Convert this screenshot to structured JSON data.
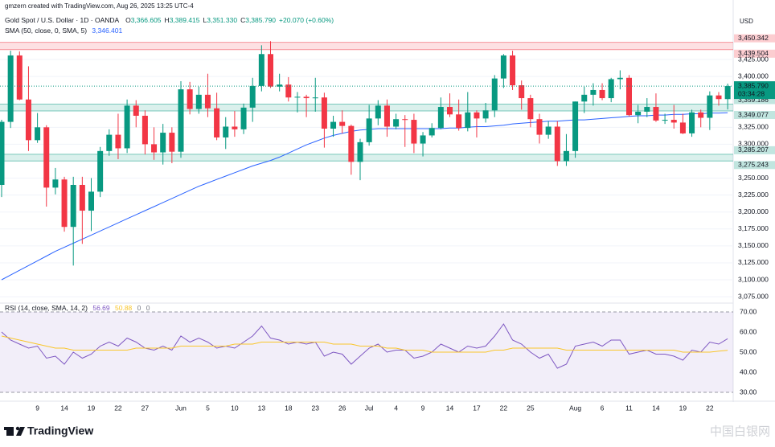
{
  "credit": "gmzern created with TradingView.com, Aug 26, 2025 13:25 UTC-4",
  "brand": "TradingView",
  "watermark": "中国白银网",
  "chart_data": [
    {
      "type": "candlestick",
      "title": "Gold Spot / U.S. Dollar · 1D · OANDA",
      "currency": "USD",
      "ohlc_legend": [
        {
          "label": "O",
          "value": "3,366.605"
        },
        {
          "label": "H",
          "value": "3,389.415"
        },
        {
          "label": "L",
          "value": "3,351.330"
        },
        {
          "label": "C",
          "value": "3,385.790"
        }
      ],
      "change": "+20.070 (+0.60%)",
      "up_color": "#089981",
      "down_color": "#f23645",
      "categories": [
        null,
        null,
        null,
        null,
        "9",
        null,
        null,
        "14",
        null,
        null,
        "19",
        null,
        null,
        "22",
        null,
        null,
        "27",
        null,
        null,
        null,
        "Jun",
        null,
        null,
        "5",
        null,
        null,
        "10",
        null,
        null,
        "13",
        null,
        null,
        "18",
        null,
        null,
        "23",
        null,
        null,
        "26",
        null,
        null,
        "Jul",
        null,
        null,
        "4",
        null,
        null,
        "9",
        null,
        null,
        "14",
        null,
        null,
        "17",
        null,
        null,
        "22",
        null,
        null,
        "25",
        null,
        null,
        null,
        null,
        "Aug",
        null,
        null,
        "6",
        null,
        null,
        "11",
        null,
        null,
        "14",
        null,
        null,
        "19",
        null,
        null,
        "22",
        null,
        null
      ],
      "open": [
        3240,
        3333,
        3431,
        3366,
        3306,
        3325,
        3236,
        3248,
        3178,
        3240,
        3202,
        3230,
        3290,
        3314,
        3294,
        3357,
        3342,
        3300,
        3288,
        3317,
        3289,
        3381,
        3352,
        3373,
        3353,
        3310,
        3326,
        3322,
        3354,
        3386,
        3433,
        3385,
        3388,
        3369,
        3370,
        3368,
        3369,
        3323,
        3333,
        3327,
        3274,
        3303,
        3338,
        3357,
        3326,
        3337,
        3336,
        3301,
        3313,
        3324,
        3355,
        3344,
        3324,
        3347,
        3338,
        3350,
        3397,
        3431,
        3387,
        3368,
        3337,
        3314,
        3326,
        3275,
        3290,
        3363,
        3373,
        3380,
        3368,
        3396,
        3398,
        3343,
        3348,
        3355,
        3335,
        3336,
        3332,
        3316,
        3347,
        3339,
        3372,
        3366.605
      ],
      "high": [
        3336,
        3438,
        3437,
        3415,
        3346,
        3328,
        3265,
        3252,
        3252,
        3252,
        3250,
        3296,
        3322,
        3345,
        3366,
        3365,
        3350,
        3325,
        3330,
        3325,
        3393,
        3392,
        3385,
        3404,
        3376,
        3340,
        3349,
        3360,
        3398,
        3446,
        3452,
        3404,
        3399,
        3377,
        3373,
        3398,
        3376,
        3342,
        3350,
        3329,
        3308,
        3358,
        3365,
        3366,
        3345,
        3343,
        3345,
        3318,
        3331,
        3369,
        3375,
        3366,
        3377,
        3350,
        3361,
        3402,
        3433,
        3438,
        3394,
        3373,
        3345,
        3334,
        3334,
        3315,
        3363,
        3385,
        3390,
        3390,
        3398,
        3409,
        3402,
        3358,
        3368,
        3375,
        3345,
        3358,
        3345,
        3351,
        3351,
        3378,
        3377,
        3389.415
      ],
      "low": [
        3222,
        3324,
        3365,
        3290,
        3302,
        3208,
        3226,
        3171,
        3121,
        3153,
        3172,
        3222,
        3283,
        3278,
        3287,
        3325,
        3285,
        3277,
        3270,
        3272,
        3280,
        3344,
        3345,
        3340,
        3306,
        3293,
        3311,
        3315,
        3333,
        3378,
        3383,
        3378,
        3363,
        3347,
        3340,
        3348,
        3295,
        3311,
        3316,
        3255,
        3247,
        3298,
        3328,
        3311,
        3322,
        3296,
        3287,
        3282,
        3310,
        3322,
        3340,
        3320,
        3319,
        3310,
        3332,
        3340,
        3383,
        3380,
        3351,
        3325,
        3301,
        3308,
        3268,
        3268,
        3280,
        3346,
        3357,
        3365,
        3362,
        3381,
        3341,
        3331,
        3340,
        3333,
        3330,
        3323,
        3315,
        3311,
        3325,
        3321,
        3357,
        3351.33
      ],
      "close": [
        3333,
        3431,
        3366,
        3306,
        3325,
        3236,
        3248,
        3178,
        3240,
        3202,
        3230,
        3290,
        3314,
        3294,
        3357,
        3342,
        3300,
        3288,
        3317,
        3289,
        3381,
        3352,
        3373,
        3353,
        3310,
        3326,
        3322,
        3354,
        3386,
        3433,
        3385,
        3388,
        3369,
        3370,
        3368,
        3369,
        3323,
        3333,
        3327,
        3274,
        3303,
        3338,
        3357,
        3326,
        3337,
        3336,
        3301,
        3313,
        3324,
        3355,
        3344,
        3324,
        3347,
        3338,
        3350,
        3397,
        3431,
        3387,
        3368,
        3337,
        3314,
        3326,
        3275,
        3290,
        3363,
        3373,
        3380,
        3368,
        3396,
        3398,
        3343,
        3348,
        3355,
        3335,
        3336,
        3332,
        3316,
        3347,
        3339,
        3372,
        3366.605,
        3385.79
      ],
      "last_label": "3,385.790",
      "countdown": "03:34:28",
      "overlays": [
        {
          "name": "SMA (50, close, 0, SMA, 5)",
          "color": "#2962ff",
          "value_label": "3,346.401",
          "values": [
            3100,
            3107,
            3114,
            3121,
            3128,
            3135,
            3142,
            3148,
            3154,
            3160,
            3166,
            3172,
            3178,
            3184,
            3190,
            3196,
            3202,
            3208,
            3214,
            3220,
            3226,
            3232,
            3238,
            3243,
            3248,
            3253,
            3258,
            3263,
            3268,
            3272,
            3276,
            3281,
            3287,
            3293,
            3299,
            3304,
            3309,
            3313,
            3316,
            3319,
            3321,
            3322,
            3323,
            3323,
            3323,
            3323,
            3323,
            3323,
            3323,
            3323,
            3324,
            3324,
            3325,
            3326,
            3326,
            3327,
            3328,
            3330,
            3331,
            3332,
            3333,
            3334,
            3334,
            3335,
            3336,
            3336,
            3337,
            3338,
            3339,
            3340,
            3341,
            3342,
            3342,
            3343,
            3343,
            3344,
            3344,
            3345,
            3345,
            3346,
            3346,
            3346.401
          ]
        }
      ],
      "zones": [
        {
          "low": 3439.504,
          "high": 3450.342,
          "low_label": "3,439.504",
          "high_label": "3,450.342",
          "color": "#f23645"
        },
        {
          "low": 3349.077,
          "high": 3359.186,
          "low_label": "3,349.077",
          "high_label": "3,359.186",
          "color": "#089981"
        },
        {
          "low": 3275.243,
          "high": 3285.207,
          "low_label": "3,275.243",
          "high_label": "3,285.207",
          "color": "#089981"
        }
      ],
      "ylim": [
        3068,
        3495
      ],
      "yticks": [
        {
          "value": 3075,
          "label": "3,075.000"
        },
        {
          "value": 3100,
          "label": "3,100.000"
        },
        {
          "value": 3125,
          "label": "3,125.000"
        },
        {
          "value": 3150,
          "label": "3,150.000"
        },
        {
          "value": 3175,
          "label": "3,175.000"
        },
        {
          "value": 3200,
          "label": "3,200.000"
        },
        {
          "value": 3225,
          "label": "3,225.000"
        },
        {
          "value": 3250,
          "label": "3,250.000"
        },
        {
          "value": 3300,
          "label": "3,300.000"
        },
        {
          "value": 3325,
          "label": "3,325.000"
        },
        {
          "value": 3400,
          "label": "3,400.000"
        },
        {
          "value": 3425,
          "label": "3,425.000"
        }
      ],
      "grid": true
    },
    {
      "type": "line",
      "title": "RSI (14, close, SMA, 14, 2)",
      "extra_values": [
        0,
        0
      ],
      "series": [
        {
          "color": "#7e57c2",
          "values": [
            60,
            56,
            54,
            52,
            53,
            47,
            48,
            44,
            50,
            47,
            49,
            53,
            55,
            53,
            57,
            55,
            52,
            51,
            53,
            51,
            58,
            55,
            57,
            55,
            52,
            53,
            52,
            55,
            58,
            63,
            57,
            56,
            54,
            55,
            54,
            55,
            48,
            50,
            49,
            44,
            48,
            52,
            54,
            50,
            51,
            51,
            47,
            48,
            50,
            54,
            52,
            50,
            53,
            52,
            53,
            58,
            64,
            56,
            54,
            50,
            47,
            49,
            42,
            44,
            53,
            54,
            55,
            53,
            56,
            56,
            49,
            50,
            51,
            49,
            49,
            48,
            46,
            51,
            50,
            55,
            54,
            56.69
          ]
        },
        {
          "color": "#f9c62b",
          "values": [
            58,
            57,
            56,
            55,
            54,
            53,
            52,
            52,
            51,
            51,
            51,
            51,
            51,
            51,
            51,
            52,
            52,
            52,
            52,
            52,
            53,
            53,
            53,
            53,
            53,
            53,
            54,
            54,
            54,
            55,
            55,
            55,
            55,
            55,
            55,
            55,
            55,
            54,
            54,
            54,
            53,
            53,
            53,
            52,
            52,
            51,
            51,
            51,
            50,
            50,
            50,
            50,
            50,
            50,
            50,
            51,
            51,
            52,
            52,
            52,
            52,
            52,
            52,
            51,
            51,
            51,
            51,
            51,
            51,
            51,
            51,
            51,
            51,
            51,
            51,
            51,
            50,
            50,
            50,
            50,
            50.5,
            50.88
          ]
        }
      ],
      "band": [
        30,
        70
      ],
      "ylim": [
        26,
        74
      ],
      "yticks": [
        {
          "value": 30,
          "label": "30.00"
        },
        {
          "value": 40,
          "label": "40.00"
        },
        {
          "value": 50,
          "label": "50.00"
        },
        {
          "value": 60,
          "label": "60.00"
        },
        {
          "value": 70,
          "label": "70.00"
        }
      ]
    }
  ]
}
